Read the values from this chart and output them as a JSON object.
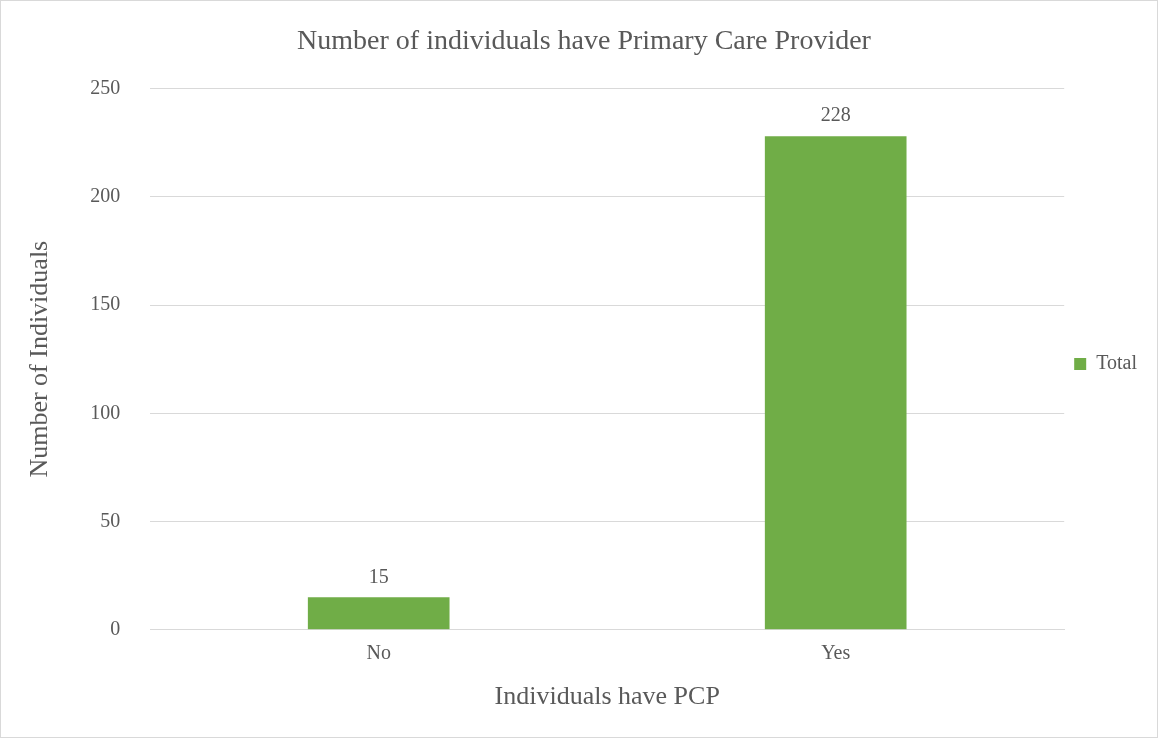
{
  "chart_data": {
    "type": "bar",
    "title": "Number of individuals have Primary Care Provider",
    "xlabel": "Individuals have PCP",
    "ylabel": "Number of Individuals",
    "categories": [
      "No",
      "Yes"
    ],
    "series": [
      {
        "name": "Total",
        "color": "#70ad47",
        "values": [
          15,
          228
        ]
      }
    ],
    "ylim": [
      0,
      250
    ],
    "yticks": [
      0,
      50,
      100,
      150,
      200,
      250
    ],
    "grid": "y",
    "legend": "right",
    "data_labels": true
  }
}
